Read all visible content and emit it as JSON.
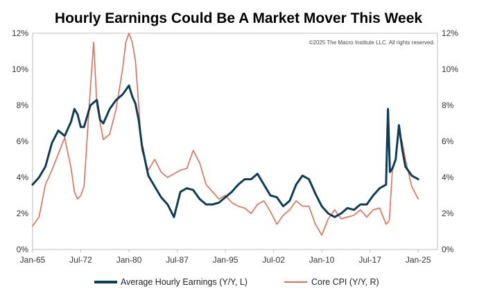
{
  "chart_data": {
    "type": "line",
    "title": "Hourly Earnings Could Be A Market Mover This Week",
    "copyright": "©2025 The Macro Institute LLC. All rights reserved.",
    "x_tick_labels": [
      "Jan-65",
      "Jul-72",
      "Jan-80",
      "Jul-87",
      "Jan-95",
      "Jul-02",
      "Jan-10",
      "Jul-17",
      "Jan-25"
    ],
    "x_tick_values": [
      1965.0,
      1972.5,
      1980.0,
      1987.5,
      1995.0,
      2002.5,
      2010.0,
      2017.5,
      2025.0
    ],
    "xlim": [
      1965.0,
      2028.0
    ],
    "y_left_tick_labels": [
      "0%",
      "2%",
      "4%",
      "6%",
      "8%",
      "10%",
      "12%"
    ],
    "y_right_tick_labels": [
      "0%",
      "2%",
      "4%",
      "6%",
      "8%",
      "10%",
      "12%"
    ],
    "ylim_left": [
      0,
      12
    ],
    "ylim_right": [
      0,
      12
    ],
    "legend_position": "bottom",
    "series": [
      {
        "name": "Average Hourly Earnings (Y/Y, L)",
        "axis": "left",
        "color": "#0d3d56",
        "x": [
          1965.0,
          1966.0,
          1967.0,
          1968.0,
          1969.0,
          1970.0,
          1971.0,
          1971.5,
          1972.0,
          1972.5,
          1973.0,
          1974.0,
          1975.0,
          1975.5,
          1976.0,
          1977.0,
          1978.0,
          1979.0,
          1980.0,
          1980.5,
          1981.0,
          1981.5,
          1982.0,
          1983.0,
          1984.0,
          1985.0,
          1986.0,
          1987.0,
          1988.0,
          1989.0,
          1990.0,
          1991.0,
          1992.0,
          1993.0,
          1994.0,
          1995.0,
          1996.0,
          1997.0,
          1998.0,
          1999.0,
          2000.0,
          2001.0,
          2002.0,
          2003.0,
          2004.0,
          2005.0,
          2006.0,
          2007.0,
          2008.0,
          2009.0,
          2010.0,
          2011.0,
          2012.0,
          2013.0,
          2014.0,
          2015.0,
          2016.0,
          2017.0,
          2018.0,
          2019.0,
          2020.0,
          2020.3,
          2020.6,
          2021.0,
          2021.5,
          2022.0,
          2022.5,
          2023.0,
          2024.0,
          2025.0
        ],
        "values": [
          3.6,
          4.0,
          4.6,
          5.9,
          6.6,
          6.3,
          7.1,
          7.8,
          7.5,
          6.8,
          6.8,
          8.0,
          8.3,
          7.2,
          7.0,
          7.8,
          8.3,
          8.6,
          9.1,
          8.5,
          8.1,
          7.2,
          5.8,
          4.1,
          3.5,
          2.9,
          2.5,
          1.8,
          3.2,
          3.4,
          3.3,
          2.8,
          2.5,
          2.5,
          2.6,
          2.9,
          3.2,
          3.6,
          3.9,
          3.9,
          4.2,
          3.6,
          3.0,
          2.9,
          2.4,
          2.7,
          3.6,
          4.1,
          3.9,
          3.1,
          2.4,
          2.0,
          1.8,
          2.0,
          2.3,
          2.2,
          2.5,
          2.5,
          3.0,
          3.4,
          3.6,
          7.8,
          4.3,
          4.5,
          5.0,
          6.9,
          5.6,
          4.6,
          4.1,
          3.9
        ]
      },
      {
        "name": "Core CPI (Y/Y, R)",
        "axis": "right",
        "color": "#e56b52",
        "x": [
          1965.0,
          1966.0,
          1967.0,
          1968.0,
          1969.0,
          1970.0,
          1971.0,
          1971.5,
          1972.0,
          1972.5,
          1973.0,
          1974.0,
          1974.5,
          1975.0,
          1976.0,
          1977.0,
          1978.0,
          1979.0,
          1979.5,
          1980.0,
          1980.5,
          1981.0,
          1981.5,
          1982.0,
          1983.0,
          1984.0,
          1985.0,
          1986.0,
          1987.0,
          1988.0,
          1989.0,
          1990.0,
          1991.0,
          1992.0,
          1993.0,
          1994.0,
          1995.0,
          1996.0,
          1997.0,
          1998.0,
          1999.0,
          2000.0,
          2001.0,
          2002.0,
          2003.0,
          2004.0,
          2005.0,
          2006.0,
          2007.0,
          2008.0,
          2009.0,
          2010.0,
          2011.0,
          2012.0,
          2013.0,
          2014.0,
          2015.0,
          2016.0,
          2017.0,
          2018.0,
          2019.0,
          2020.0,
          2020.5,
          2021.0,
          2021.5,
          2022.0,
          2022.5,
          2023.0,
          2024.0,
          2025.0
        ],
        "values": [
          1.3,
          1.8,
          3.6,
          4.4,
          5.3,
          6.2,
          4.5,
          3.2,
          2.8,
          3.0,
          3.5,
          9.0,
          11.5,
          8.0,
          6.1,
          6.4,
          7.8,
          10.0,
          11.5,
          12.0,
          11.5,
          10.5,
          8.0,
          5.5,
          4.4,
          5.0,
          4.3,
          4.0,
          4.2,
          4.4,
          4.5,
          5.5,
          4.8,
          3.6,
          3.2,
          2.8,
          3.0,
          2.6,
          2.4,
          2.3,
          2.0,
          2.5,
          2.7,
          2.1,
          1.4,
          1.9,
          2.2,
          2.7,
          2.4,
          2.4,
          1.4,
          0.8,
          1.7,
          2.2,
          1.7,
          1.8,
          1.9,
          2.2,
          1.8,
          2.2,
          2.3,
          1.4,
          1.6,
          4.5,
          5.0,
          6.5,
          6.0,
          5.0,
          3.5,
          2.8
        ]
      }
    ]
  }
}
